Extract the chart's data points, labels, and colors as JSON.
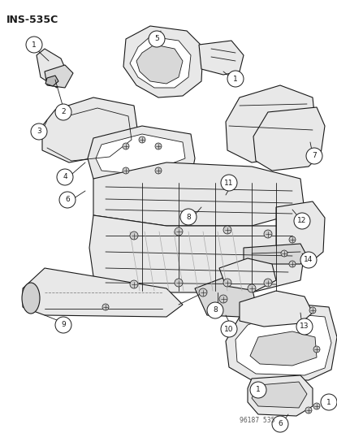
{
  "title": "INS-535C",
  "watermark": "96187  535",
  "bg": "#ffffff",
  "lc": "#1a1a1a",
  "figsize": [
    4.15,
    5.33
  ],
  "dpi": 100,
  "label_r": 0.025
}
